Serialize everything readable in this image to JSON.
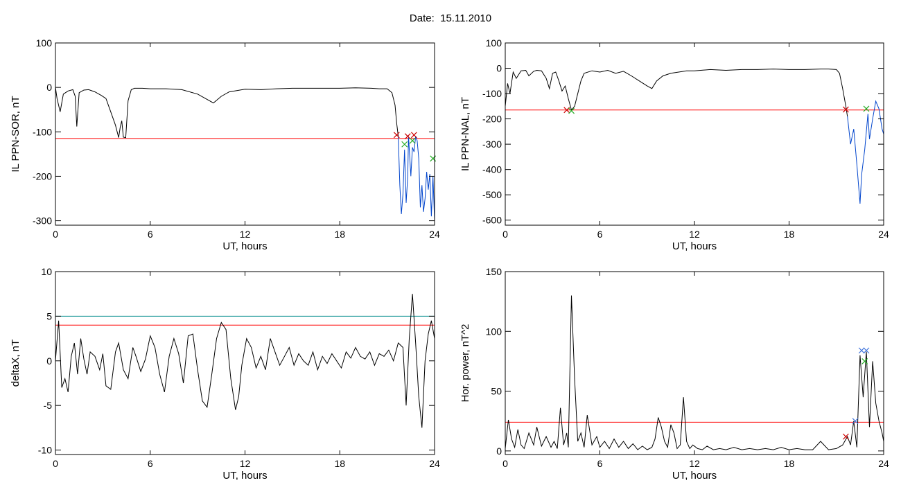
{
  "header": {
    "date_label": "Date:",
    "date_value": "15.11.2010"
  },
  "chart_data": [
    {
      "type": "line",
      "id": "ppn-sor",
      "xlabel": "UT, hours",
      "ylabel": "IL PPN-SOR, nT",
      "xlim": [
        0,
        24
      ],
      "ylim": [
        -310,
        100
      ],
      "xticks": [
        0,
        6,
        12,
        18,
        24
      ],
      "yticks": [
        100,
        0,
        -100,
        -200,
        -300
      ],
      "ytick_labels": [
        "100",
        "0",
        "-100",
        "-200",
        "-300"
      ],
      "threshold_lines": [
        {
          "y": -115,
          "color": "#ff0000"
        }
      ],
      "series": [
        {
          "color": "#000000",
          "x": [
            0,
            0.1,
            0.3,
            0.5,
            0.8,
            1.1,
            1.25,
            1.35,
            1.5,
            1.8,
            2.1,
            2.5,
            2.9,
            3.2,
            3.5,
            3.8,
            4.0,
            4.1,
            4.2,
            4.3,
            4.45,
            4.6,
            4.8,
            5.0,
            5.5,
            6.0,
            7.0,
            8.0,
            9.0,
            9.5,
            10.0,
            10.5,
            11.0,
            12.0,
            13.0,
            14.0,
            15.0,
            16.0,
            17.0,
            18.0,
            19.0,
            20.0,
            20.5,
            21.0,
            21.3,
            21.5,
            21.6,
            21.7
          ],
          "y": [
            0,
            -25,
            -55,
            -15,
            -8,
            -5,
            -20,
            -88,
            -12,
            -6,
            -5,
            -10,
            -18,
            -25,
            -55,
            -85,
            -113,
            -90,
            -75,
            -112,
            -113,
            -30,
            -5,
            -2,
            -2,
            -3,
            -3,
            -5,
            -15,
            -25,
            -35,
            -20,
            -10,
            -4,
            -5,
            -3,
            -2,
            -2,
            -2,
            -2,
            -1,
            -2,
            -3,
            -3,
            -12,
            -40,
            -80,
            -110
          ]
        },
        {
          "color": "#0044cc",
          "x": [
            21.7,
            21.8,
            21.9,
            22.0,
            22.1,
            22.2,
            22.3,
            22.35,
            22.45,
            22.5,
            22.6,
            22.7,
            22.8,
            22.9,
            23.0,
            23.1,
            23.2,
            23.3,
            23.4,
            23.5,
            23.6,
            23.7,
            23.8,
            23.9,
            24.0
          ],
          "y": [
            -110,
            -220,
            -285,
            -240,
            -140,
            -260,
            -200,
            -110,
            -170,
            -200,
            -135,
            -145,
            -110,
            -120,
            -160,
            -270,
            -220,
            -280,
            -250,
            -190,
            -230,
            -195,
            -290,
            -200,
            -300
          ]
        }
      ],
      "markers": [
        {
          "x": 21.6,
          "y": -107,
          "color": "#cc0000"
        },
        {
          "x": 22.3,
          "y": -110,
          "color": "#cc0000"
        },
        {
          "x": 22.7,
          "y": -107,
          "color": "#cc0000"
        },
        {
          "x": 22.1,
          "y": -128,
          "color": "#22aa22"
        },
        {
          "x": 22.6,
          "y": -120,
          "color": "#22aa22"
        },
        {
          "x": 23.9,
          "y": -160,
          "color": "#22aa22"
        }
      ]
    },
    {
      "type": "line",
      "id": "ppn-nal",
      "xlabel": "UT, hours",
      "ylabel": "IL PPN-NAL, nT",
      "xlim": [
        0,
        24
      ],
      "ylim": [
        -620,
        100
      ],
      "xticks": [
        0,
        6,
        12,
        18,
        24
      ],
      "yticks": [
        100,
        0,
        -100,
        -200,
        -300,
        -400,
        -500,
        -600
      ],
      "ytick_labels": [
        "100",
        "0",
        "-100",
        "-200",
        "-300",
        "-400",
        "-500",
        "-600"
      ],
      "threshold_lines": [
        {
          "y": -165,
          "color": "#ff0000"
        }
      ],
      "series": [
        {
          "color": "#000000",
          "x": [
            0,
            0.15,
            0.3,
            0.5,
            0.7,
            1.0,
            1.3,
            1.5,
            1.8,
            2.0,
            2.3,
            2.6,
            2.8,
            3.0,
            3.2,
            3.4,
            3.6,
            3.8,
            4.0,
            4.2,
            4.4,
            4.6,
            4.8,
            5.0,
            5.5,
            6.0,
            6.5,
            7.0,
            7.5,
            8.0,
            8.5,
            9.0,
            9.3,
            9.6,
            10.0,
            10.5,
            11.0,
            11.5,
            12.0,
            13.0,
            14.0,
            15.0,
            16.0,
            17.0,
            18.0,
            19.0,
            20.0,
            20.5,
            21.0,
            21.2,
            21.4,
            21.6,
            21.7
          ],
          "y": [
            -150,
            -60,
            -100,
            -15,
            -40,
            -10,
            -8,
            -30,
            -12,
            -8,
            -10,
            -40,
            -80,
            -20,
            -15,
            -50,
            -90,
            -70,
            -120,
            -165,
            -150,
            -100,
            -50,
            -20,
            -10,
            -15,
            -8,
            -20,
            -12,
            -30,
            -50,
            -70,
            -80,
            -50,
            -30,
            -20,
            -15,
            -10,
            -10,
            -5,
            -8,
            -5,
            -5,
            -3,
            -5,
            -5,
            -3,
            -3,
            -5,
            -20,
            -80,
            -150,
            -190
          ]
        },
        {
          "color": "#0044cc",
          "x": [
            21.7,
            21.9,
            22.1,
            22.3,
            22.5,
            22.6,
            22.8,
            23.0,
            23.1,
            23.3,
            23.5,
            23.7,
            23.9,
            24.0
          ],
          "y": [
            -190,
            -300,
            -240,
            -380,
            -535,
            -420,
            -320,
            -180,
            -280,
            -200,
            -130,
            -160,
            -240,
            -260
          ]
        }
      ],
      "markers": [
        {
          "x": 3.9,
          "y": -165,
          "color": "#cc0000"
        },
        {
          "x": 4.2,
          "y": -168,
          "color": "#22aa22"
        },
        {
          "x": 21.6,
          "y": -163,
          "color": "#cc0000"
        },
        {
          "x": 22.9,
          "y": -160,
          "color": "#22aa22"
        }
      ]
    },
    {
      "type": "line",
      "id": "deltax",
      "xlabel": "UT, hours",
      "ylabel": "deltaX, nT",
      "xlim": [
        0,
        24
      ],
      "ylim": [
        -10.5,
        10
      ],
      "xticks": [
        0,
        6,
        12,
        18,
        24
      ],
      "yticks": [
        10,
        5,
        0,
        -5,
        -10
      ],
      "ytick_labels": [
        "10",
        "5",
        "0",
        "-5",
        "-10"
      ],
      "threshold_lines": [
        {
          "y": 5,
          "color": "#008b8b"
        },
        {
          "y": 4,
          "color": "#ff0000"
        }
      ],
      "series": [
        {
          "color": "#000000",
          "x": [
            0,
            0.2,
            0.4,
            0.6,
            0.8,
            1.0,
            1.2,
            1.4,
            1.6,
            1.8,
            2.0,
            2.2,
            2.5,
            2.8,
            3.0,
            3.2,
            3.5,
            3.8,
            4.0,
            4.3,
            4.6,
            4.9,
            5.1,
            5.4,
            5.7,
            6.0,
            6.3,
            6.6,
            6.9,
            7.2,
            7.5,
            7.8,
            8.1,
            8.4,
            8.7,
            9.0,
            9.3,
            9.6,
            9.9,
            10.2,
            10.5,
            10.8,
            11.1,
            11.4,
            11.6,
            11.8,
            12.1,
            12.4,
            12.7,
            13.0,
            13.3,
            13.6,
            13.9,
            14.2,
            14.5,
            14.8,
            15.1,
            15.4,
            15.7,
            16.0,
            16.3,
            16.6,
            16.9,
            17.2,
            17.5,
            17.8,
            18.1,
            18.4,
            18.7,
            19.0,
            19.3,
            19.6,
            19.9,
            20.2,
            20.5,
            20.8,
            21.1,
            21.4,
            21.7,
            22.0,
            22.2,
            22.4,
            22.6,
            22.8,
            23.0,
            23.2,
            23.4,
            23.6,
            23.8,
            24.0
          ],
          "y": [
            0,
            4.5,
            -3.0,
            -2.0,
            -3.5,
            0.5,
            2.0,
            -1.5,
            2.5,
            0.2,
            -1.5,
            1.0,
            0.5,
            -1.0,
            0.8,
            -2.8,
            -3.2,
            1.0,
            2.0,
            -1.0,
            -2.0,
            1.5,
            0.5,
            -1.2,
            0.2,
            2.8,
            1.5,
            -1.5,
            -3.5,
            0.5,
            2.5,
            0.8,
            -2.5,
            2.8,
            3.0,
            -1.0,
            -4.5,
            -5.2,
            -1.5,
            2.5,
            4.3,
            3.5,
            -2.0,
            -5.5,
            -4.0,
            -0.5,
            2.5,
            1.5,
            -0.8,
            0.5,
            -1.0,
            2.5,
            1.0,
            -0.5,
            0.5,
            1.5,
            -0.5,
            0.8,
            0.0,
            -0.5,
            1.0,
            -1.0,
            0.5,
            -0.3,
            0.8,
            0.0,
            -0.8,
            1.0,
            0.3,
            1.5,
            0.5,
            0.2,
            1.0,
            -0.5,
            0.8,
            0.5,
            1.2,
            0.0,
            2.0,
            1.5,
            -5.0,
            2.5,
            7.5,
            2.0,
            -4.0,
            -7.5,
            0.0,
            3.0,
            4.5,
            2.5
          ]
        }
      ],
      "markers": []
    },
    {
      "type": "line",
      "id": "hor-power",
      "xlabel": "UT, hours",
      "ylabel": "Hor. power, nT^2",
      "xlim": [
        0,
        24
      ],
      "ylim": [
        -3,
        150
      ],
      "xticks": [
        0,
        6,
        12,
        18,
        24
      ],
      "yticks": [
        150,
        100,
        50,
        0
      ],
      "ytick_labels": [
        "150",
        "100",
        "50",
        "0"
      ],
      "threshold_lines": [
        {
          "y": 24,
          "color": "#ff0000"
        }
      ],
      "series": [
        {
          "color": "#000000",
          "x": [
            0,
            0.2,
            0.4,
            0.6,
            0.8,
            1.0,
            1.2,
            1.5,
            1.8,
            2.0,
            2.3,
            2.6,
            2.9,
            3.1,
            3.3,
            3.5,
            3.7,
            3.9,
            4.0,
            4.2,
            4.4,
            4.6,
            4.8,
            5.0,
            5.2,
            5.5,
            5.8,
            6.0,
            6.3,
            6.6,
            6.9,
            7.2,
            7.5,
            7.8,
            8.1,
            8.4,
            8.7,
            9.0,
            9.3,
            9.5,
            9.7,
            9.9,
            10.1,
            10.3,
            10.5,
            10.7,
            10.9,
            11.1,
            11.3,
            11.5,
            11.7,
            11.9,
            12.2,
            12.5,
            12.8,
            13.2,
            13.6,
            14.0,
            14.5,
            15.0,
            15.5,
            16.0,
            16.5,
            17.0,
            17.5,
            18.0,
            18.5,
            19.0,
            19.5,
            20.0,
            20.5,
            21.0,
            21.4,
            21.7,
            21.9,
            22.1,
            22.3,
            22.5,
            22.7,
            22.9,
            23.1,
            23.3,
            23.5,
            23.7,
            23.9,
            24.0
          ],
          "y": [
            2,
            26,
            10,
            3,
            18,
            5,
            2,
            15,
            5,
            20,
            4,
            12,
            3,
            8,
            2,
            36,
            5,
            15,
            3,
            130,
            60,
            8,
            15,
            3,
            30,
            5,
            12,
            3,
            8,
            2,
            10,
            3,
            8,
            2,
            6,
            1,
            4,
            1,
            3,
            10,
            28,
            20,
            8,
            3,
            22,
            15,
            2,
            5,
            45,
            8,
            2,
            5,
            2,
            1,
            4,
            1,
            2,
            1,
            3,
            1,
            2,
            1,
            2,
            1,
            3,
            1,
            2,
            1,
            1,
            8,
            1,
            2,
            5,
            12,
            5,
            25,
            3,
            80,
            45,
            83,
            20,
            75,
            40,
            25,
            15,
            8
          ]
        }
      ],
      "markers": [
        {
          "x": 21.6,
          "y": 12,
          "color": "#cc0000"
        },
        {
          "x": 22.2,
          "y": 25,
          "color": "#4477dd"
        },
        {
          "x": 22.6,
          "y": 84,
          "color": "#4477dd"
        },
        {
          "x": 22.9,
          "y": 84,
          "color": "#4477dd"
        },
        {
          "x": 22.8,
          "y": 75,
          "color": "#22aa22"
        }
      ]
    }
  ]
}
